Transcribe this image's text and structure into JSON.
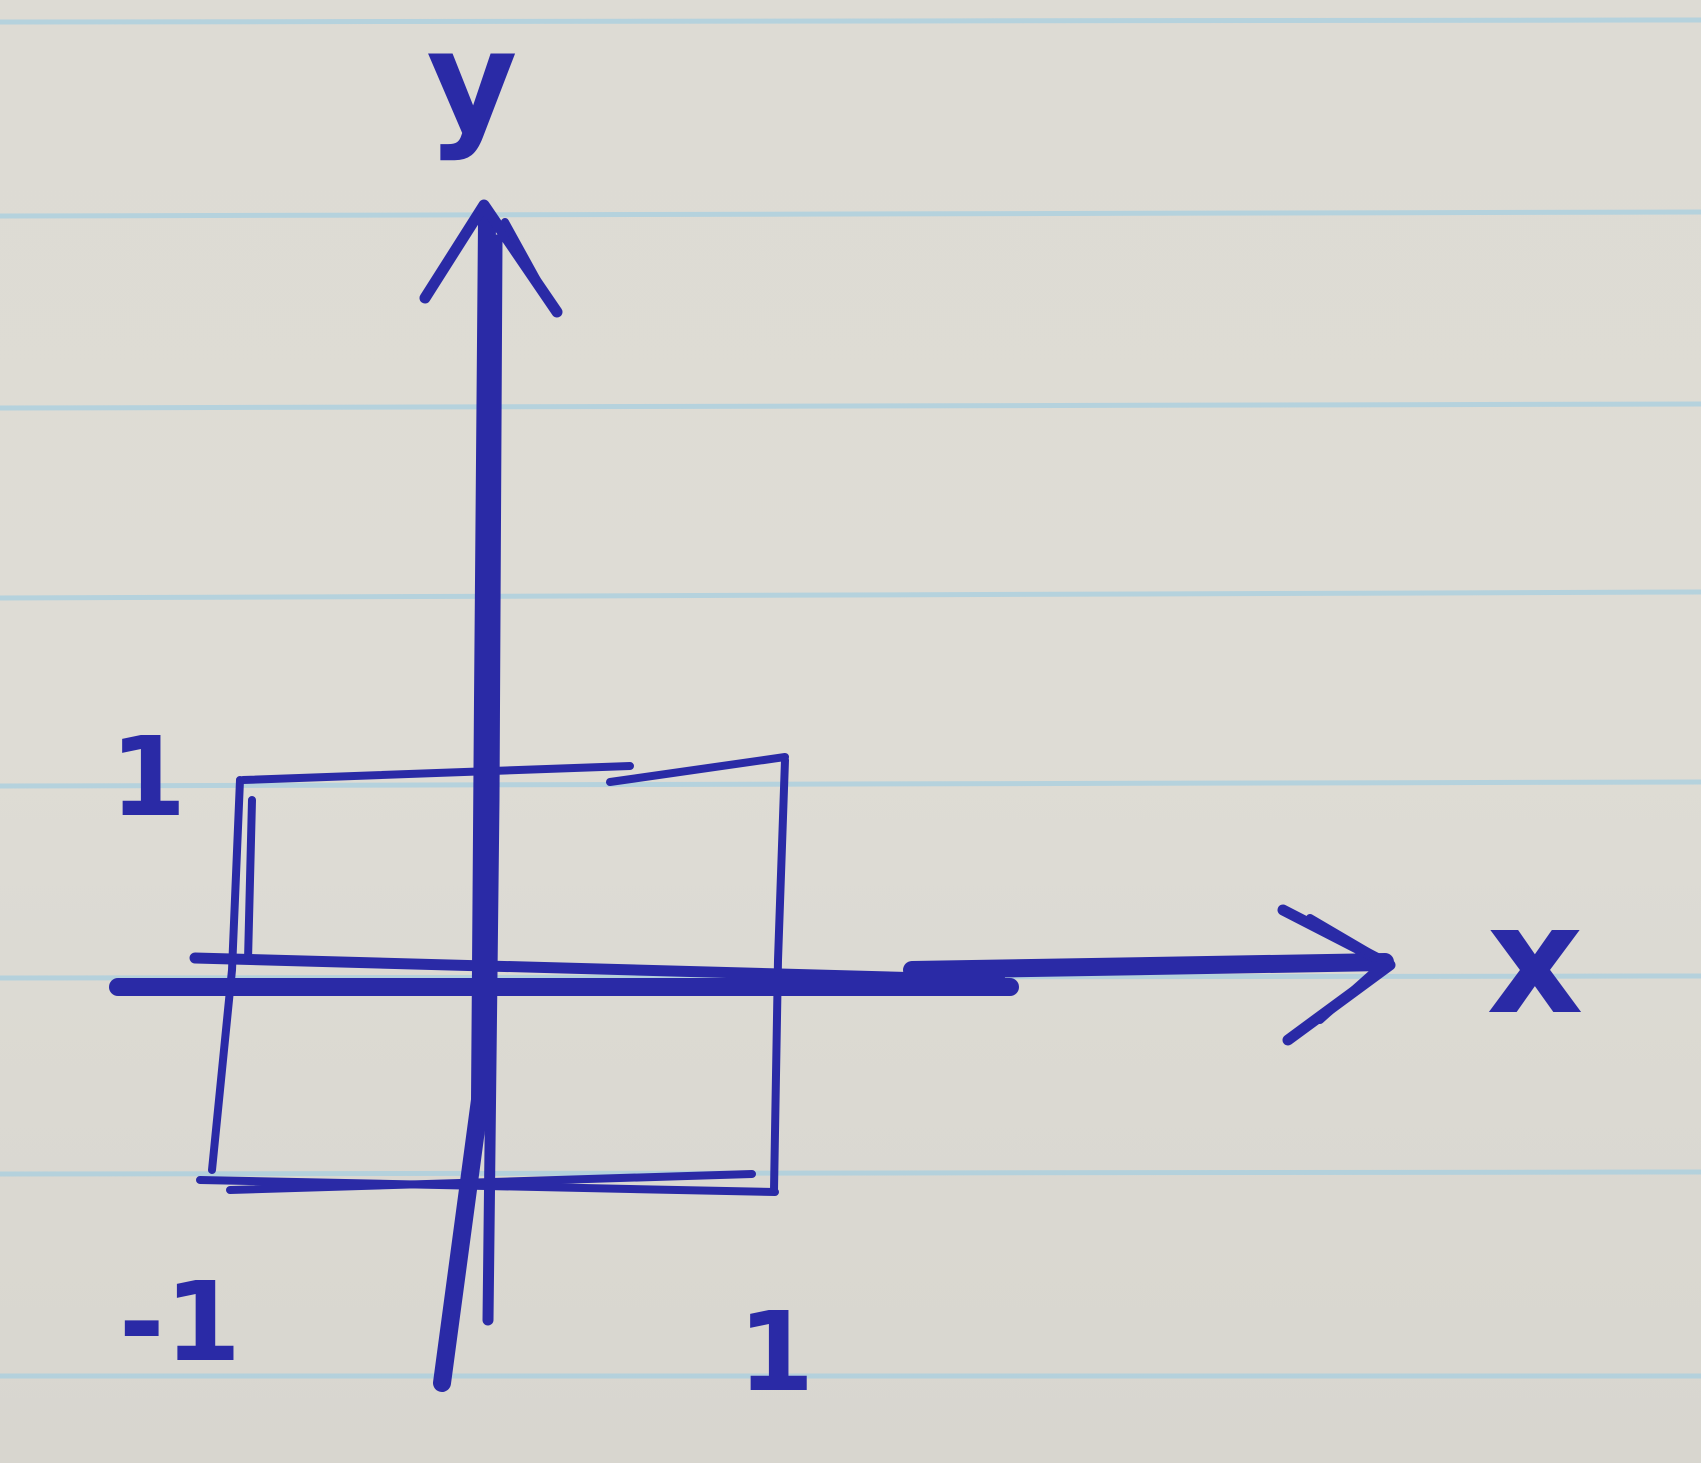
{
  "axes": {
    "x_label": "x",
    "y_label": "y"
  },
  "ticks": {
    "y_positive": "1",
    "x_negative": "-1",
    "x_positive": "1"
  },
  "colors": {
    "ink": "#2a2aa6",
    "ruling": "#a8cfe0",
    "paper": "#dddbd4"
  }
}
